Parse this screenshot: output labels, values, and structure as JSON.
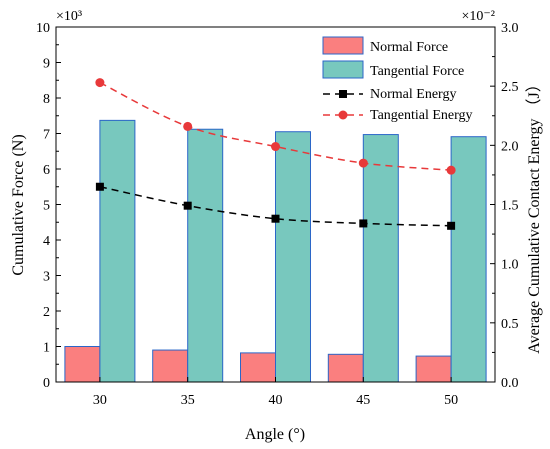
{
  "chart_data": {
    "type": "bar",
    "categories": [
      "30",
      "35",
      "40",
      "45",
      "50"
    ],
    "xlabel": "Angle (°)",
    "ylabel_left": "Cumulative Force (N)",
    "ylabel_right": "Average Cumulative Contact Energy （J）",
    "left_axis": {
      "ylim": [
        0,
        10
      ],
      "ticks": [
        "0",
        "1",
        "2",
        "3",
        "4",
        "5",
        "6",
        "7",
        "8",
        "9",
        "10"
      ],
      "multiplier_label": "×10³"
    },
    "right_axis": {
      "ylim": [
        0,
        3.0
      ],
      "ticks": [
        "0.0",
        "0.5",
        "1.0",
        "1.5",
        "2.0",
        "2.5",
        "3.0"
      ],
      "multiplier_label": "×10⁻²"
    },
    "bar_series": [
      {
        "name": "Normal Force",
        "axis": "left",
        "values": [
          1.0,
          0.9,
          0.82,
          0.78,
          0.73
        ],
        "color": "#fa7f7f",
        "stroke": "#2b66c8"
      },
      {
        "name": "Tangential Force",
        "axis": "left",
        "values": [
          7.37,
          7.12,
          7.05,
          6.97,
          6.91
        ],
        "color": "#78c8be",
        "stroke": "#2b66c8"
      }
    ],
    "line_series": [
      {
        "name": "Normal Energy",
        "axis": "right",
        "values": [
          1.65,
          1.49,
          1.38,
          1.34,
          1.32
        ],
        "color": "#000000",
        "marker": "square",
        "dash": true
      },
      {
        "name": "Tangential Energy",
        "axis": "right",
        "values": [
          2.53,
          2.16,
          1.99,
          1.85,
          1.79
        ],
        "color": "#e8393a",
        "marker": "circle",
        "dash": true
      }
    ],
    "legend_position": "top-right",
    "grid": false
  }
}
